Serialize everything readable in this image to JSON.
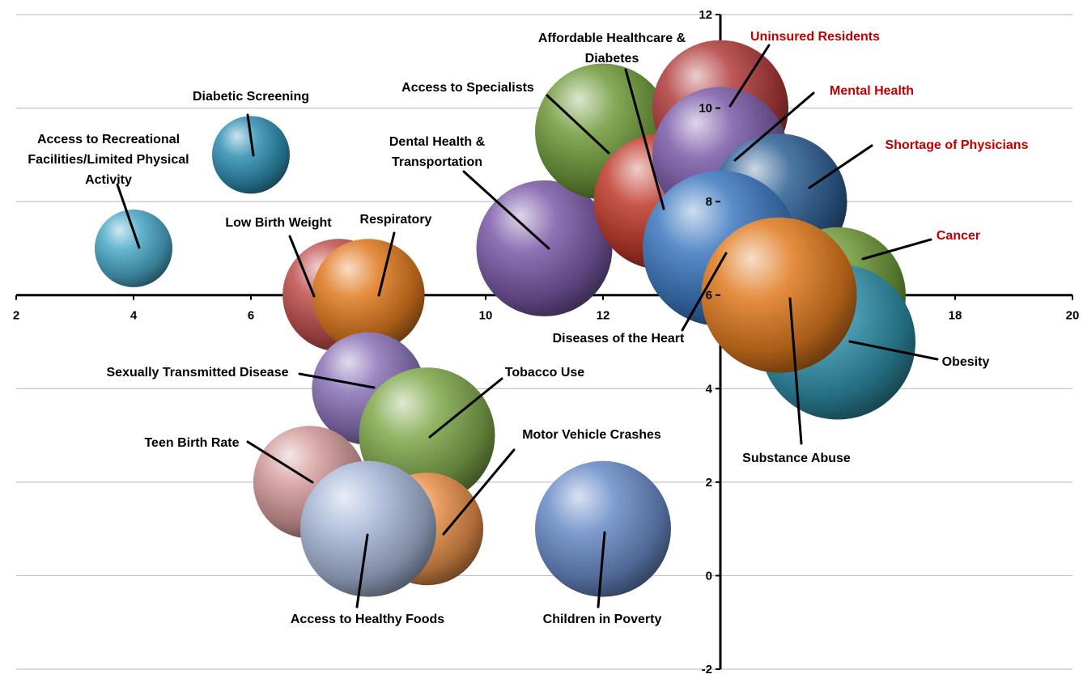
{
  "chart_data": {
    "type": "bubble",
    "title": "",
    "xlabel": "",
    "ylabel": "",
    "xlim": [
      2,
      20
    ],
    "ylim": [
      -2,
      12
    ],
    "x_ticks": [
      2,
      4,
      6,
      8,
      10,
      12,
      14,
      16,
      18,
      20
    ],
    "y_ticks": [
      -2,
      0,
      2,
      4,
      6,
      8,
      10,
      12
    ],
    "grid": "horizontal",
    "axes_cross": {
      "x_axis_at_y": 6,
      "y_axis_at_x": 14
    },
    "legend": "none",
    "points": [
      {
        "label": "Access to Recreational Facilities/Limited Physical Activity",
        "x": 4,
        "y": 7,
        "size": 1.0,
        "color": "#4aa8c8",
        "label_color": "#000000"
      },
      {
        "label": "Diabetic Screening",
        "x": 6,
        "y": 9,
        "size": 1.0,
        "color": "#2f8fb4",
        "label_color": "#000000"
      },
      {
        "label": "Low Birth Weight",
        "x": 7.5,
        "y": 6,
        "size": 1.45,
        "color": "#c0504d",
        "label_color": "#000000"
      },
      {
        "label": "Respiratory",
        "x": 8,
        "y": 6,
        "size": 1.45,
        "color": "#e07a1f",
        "label_color": "#000000"
      },
      {
        "label": "Dental Health & Transportation",
        "x": 11,
        "y": 7,
        "size": 1.75,
        "color": "#7a5aa8",
        "label_color": "#000000"
      },
      {
        "label": "Access to Specialists",
        "x": 12,
        "y": 9.5,
        "size": 1.75,
        "color": "#6f9a3a",
        "label_color": "#000000"
      },
      {
        "label": "Affordable Healthcare & Diabetes",
        "x": 13,
        "y": 8,
        "size": 1.75,
        "color": "#c0392b",
        "label_color": "#000000"
      },
      {
        "label": "Uninsured Residents",
        "x": 14,
        "y": 10,
        "size": 1.75,
        "color": "#b03a3a",
        "label_color": "#c00000"
      },
      {
        "label": "Mental Health",
        "x": 14,
        "y": 9,
        "size": 1.75,
        "color": "#7a5aa8",
        "label_color": "#c00000"
      },
      {
        "label": "Shortage of Physicians",
        "x": 15,
        "y": 8,
        "size": 1.75,
        "color": "#2e5f94",
        "label_color": "#c00000"
      },
      {
        "label": "Diseases of the Heart",
        "x": 14,
        "y": 7,
        "size": 2.0,
        "color": "#3c78c0",
        "label_color": "#000000"
      },
      {
        "label": "Cancer",
        "x": 16,
        "y": 6,
        "size": 1.75,
        "color": "#6f9a3a",
        "label_color": "#c00000"
      },
      {
        "label": "Obesity",
        "x": 16,
        "y": 5,
        "size": 2.0,
        "color": "#2f8fa8",
        "label_color": "#000000"
      },
      {
        "label": "Substance Abuse",
        "x": 15,
        "y": 6,
        "size": 2.0,
        "color": "#e07a1f",
        "label_color": "#000000"
      },
      {
        "label": "Sexually Transmitted Disease",
        "x": 8,
        "y": 4,
        "size": 1.45,
        "color": "#8a74b8",
        "label_color": "#000000"
      },
      {
        "label": "Tobacco Use",
        "x": 9,
        "y": 3,
        "size": 1.75,
        "color": "#7fa84a",
        "label_color": "#000000"
      },
      {
        "label": "Teen Birth Rate",
        "x": 7,
        "y": 2,
        "size": 1.45,
        "color": "#d49a9a",
        "label_color": "#000000"
      },
      {
        "label": "Motor Vehicle Crashes",
        "x": 9,
        "y": 1,
        "size": 1.45,
        "color": "#e8904a",
        "label_color": "#000000"
      },
      {
        "label": "Access to Healthy Foods",
        "x": 8,
        "y": 1,
        "size": 1.75,
        "color": "#a8b8d8",
        "label_color": "#000000"
      },
      {
        "label": "Children in Poverty",
        "x": 12,
        "y": 1,
        "size": 1.75,
        "color": "#6a8cc8",
        "label_color": "#000000"
      }
    ]
  }
}
